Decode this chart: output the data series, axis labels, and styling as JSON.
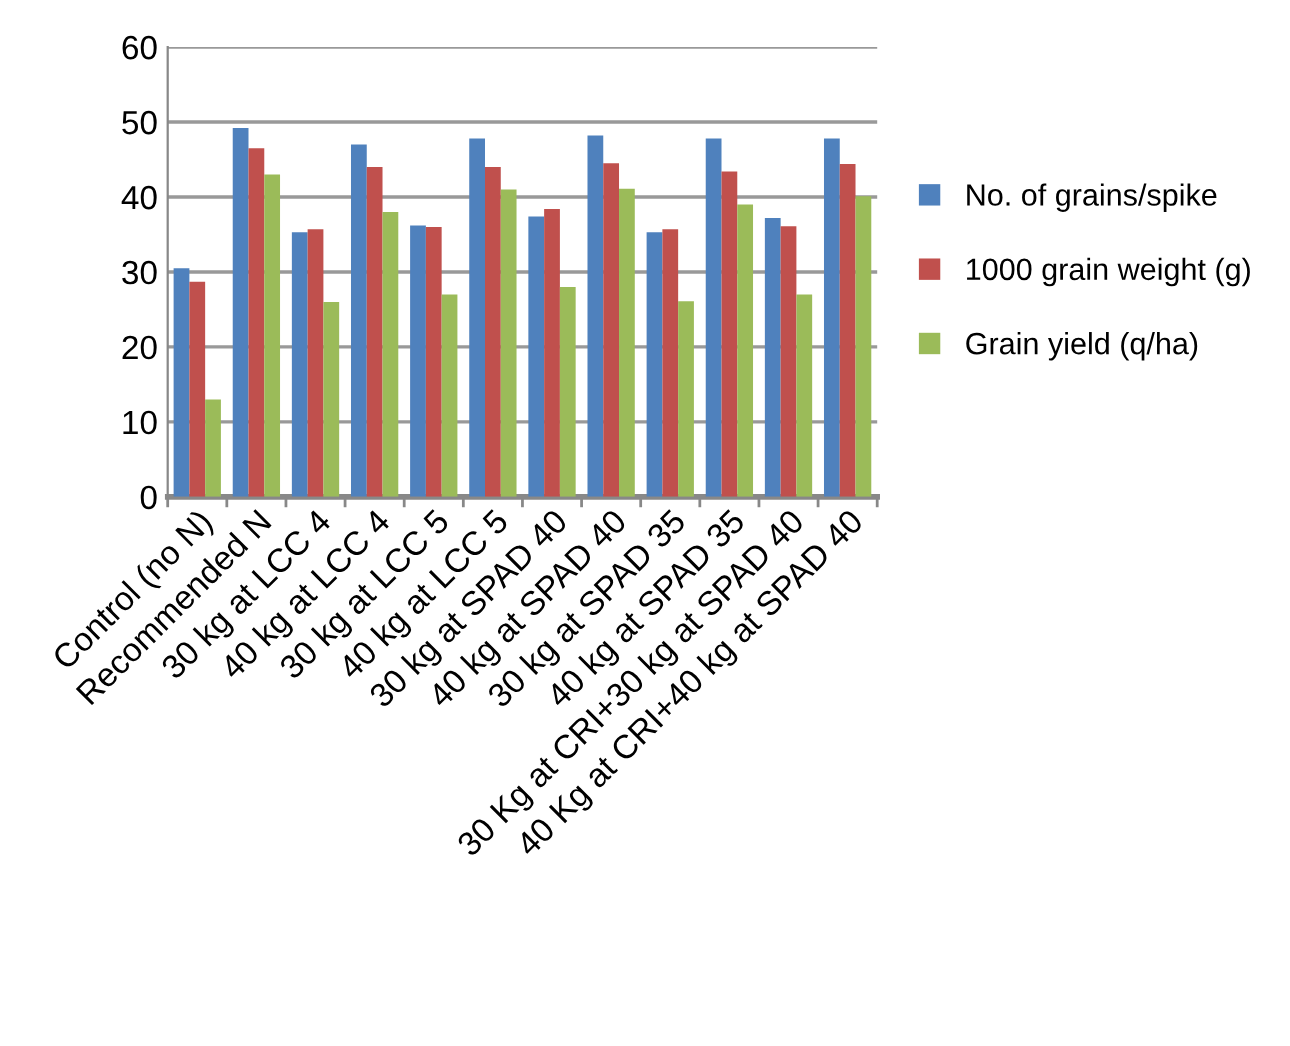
{
  "chart_data": {
    "type": "bar",
    "categories": [
      "Control (no N)",
      "Recommended N",
      "30 kg at LCC 4",
      "40 kg at LCC 4",
      "30 kg at LCC 5",
      "40 kg at LCC 5",
      "30 kg at SPAD 40",
      "40 kg at SPAD 40",
      "30 kg at SPAD 35",
      "40 kg at SPAD 35",
      "30 Kg at CRI+30 kg at SPAD 40",
      "40 Kg at CRI+40 kg at SPAD 40"
    ],
    "series": [
      {
        "name": "No. of grains/spike",
        "color": "#4f81bd",
        "values": [
          30.5,
          49.2,
          35.3,
          47.0,
          36.2,
          47.8,
          37.4,
          48.2,
          35.3,
          47.8,
          37.2,
          47.8
        ]
      },
      {
        "name": "1000 grain weight (g)",
        "color": "#c0504d",
        "values": [
          28.7,
          46.5,
          35.7,
          44.0,
          36.0,
          44.0,
          38.4,
          44.5,
          35.7,
          43.4,
          36.1,
          44.4
        ]
      },
      {
        "name": "Grain yield (q/ha)",
        "color": "#9bbb59",
        "values": [
          13,
          43,
          26,
          38,
          27,
          41,
          28,
          41.1,
          26.1,
          39,
          27,
          40.1
        ]
      }
    ],
    "ylim": [
      0,
      60
    ],
    "yticks": [
      0,
      10,
      20,
      30,
      40,
      50,
      60
    ],
    "grid": "y",
    "legend": "right"
  }
}
